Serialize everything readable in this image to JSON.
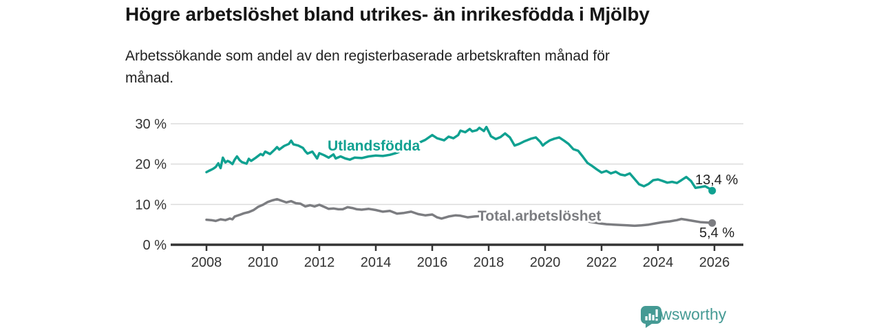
{
  "header": {
    "subtitle_lines": [
      "Arbetssökande som andel av den registerbaserade arbetskraften månad för",
      "månad."
    ]
  },
  "chart_data": {
    "type": "line",
    "title": "Högre arbetslöshet bland utrikes- än inrikesfödda i Mjölby",
    "subtitle": "Arbetssökande som andel av den registerbaserade arbetskraften månad för månad.",
    "xlabel": "",
    "ylabel": "",
    "ylim": [
      0,
      30
    ],
    "xlim": [
      2007.9,
      2026.1
    ],
    "grid": true,
    "legend_position": "inline-labels",
    "x_axis": {
      "ticks": [
        2008,
        2010,
        2012,
        2014,
        2016,
        2018,
        2020,
        2022,
        2024,
        2026
      ]
    },
    "y_axis": {
      "ticks": [
        {
          "value": 0,
          "label": "0 %"
        },
        {
          "value": 10,
          "label": "10 %"
        },
        {
          "value": 20,
          "label": "20 %"
        },
        {
          "value": 30,
          "label": "30 %"
        }
      ]
    },
    "series": [
      {
        "name": "Utlandsfödda",
        "color": "#10a191",
        "end_label": "13,4 %",
        "end_value": 13.4,
        "points": [
          [
            2008.0,
            18.0
          ],
          [
            2008.08,
            18.3
          ],
          [
            2008.17,
            18.6
          ],
          [
            2008.25,
            18.9
          ],
          [
            2008.33,
            19.3
          ],
          [
            2008.42,
            20.2
          ],
          [
            2008.5,
            19.0
          ],
          [
            2008.58,
            21.6
          ],
          [
            2008.67,
            20.4
          ],
          [
            2008.75,
            20.8
          ],
          [
            2008.83,
            20.5
          ],
          [
            2008.92,
            20.0
          ],
          [
            2009.0,
            21.1
          ],
          [
            2009.08,
            21.9
          ],
          [
            2009.17,
            21.0
          ],
          [
            2009.25,
            20.5
          ],
          [
            2009.42,
            20.1
          ],
          [
            2009.5,
            21.3
          ],
          [
            2009.58,
            20.8
          ],
          [
            2009.67,
            21.2
          ],
          [
            2009.75,
            21.6
          ],
          [
            2009.92,
            22.5
          ],
          [
            2010.0,
            22.2
          ],
          [
            2010.08,
            23.1
          ],
          [
            2010.25,
            22.5
          ],
          [
            2010.42,
            23.6
          ],
          [
            2010.5,
            24.2
          ],
          [
            2010.58,
            23.6
          ],
          [
            2010.75,
            24.5
          ],
          [
            2010.92,
            25.0
          ],
          [
            2011.0,
            25.8
          ],
          [
            2011.08,
            24.9
          ],
          [
            2011.25,
            24.6
          ],
          [
            2011.42,
            24.0
          ],
          [
            2011.5,
            23.2
          ],
          [
            2011.58,
            22.6
          ],
          [
            2011.75,
            23.1
          ],
          [
            2011.92,
            21.4
          ],
          [
            2012.0,
            22.7
          ],
          [
            2012.17,
            22.2
          ],
          [
            2012.33,
            21.6
          ],
          [
            2012.5,
            22.4
          ],
          [
            2012.58,
            21.4
          ],
          [
            2012.75,
            21.9
          ],
          [
            2012.92,
            21.4
          ],
          [
            2013.08,
            21.1
          ],
          [
            2013.25,
            21.6
          ],
          [
            2013.5,
            21.5
          ],
          [
            2013.75,
            21.9
          ],
          [
            2014.0,
            22.1
          ],
          [
            2014.25,
            22.0
          ],
          [
            2014.5,
            22.3
          ],
          [
            2014.75,
            22.8
          ],
          [
            2015.0,
            23.6
          ],
          [
            2015.25,
            24.4
          ],
          [
            2015.5,
            25.2
          ],
          [
            2015.75,
            26.0
          ],
          [
            2016.0,
            27.2
          ],
          [
            2016.17,
            26.4
          ],
          [
            2016.42,
            25.9
          ],
          [
            2016.58,
            26.8
          ],
          [
            2016.75,
            26.4
          ],
          [
            2016.92,
            27.2
          ],
          [
            2017.0,
            28.3
          ],
          [
            2017.17,
            27.9
          ],
          [
            2017.33,
            28.7
          ],
          [
            2017.42,
            28.1
          ],
          [
            2017.58,
            28.4
          ],
          [
            2017.67,
            29.0
          ],
          [
            2017.83,
            28.2
          ],
          [
            2017.92,
            29.2
          ],
          [
            2018.08,
            26.9
          ],
          [
            2018.25,
            26.2
          ],
          [
            2018.42,
            26.7
          ],
          [
            2018.58,
            27.6
          ],
          [
            2018.75,
            26.6
          ],
          [
            2018.92,
            24.6
          ],
          [
            2019.08,
            25.0
          ],
          [
            2019.25,
            25.6
          ],
          [
            2019.5,
            26.3
          ],
          [
            2019.67,
            26.6
          ],
          [
            2019.83,
            25.5
          ],
          [
            2019.92,
            24.6
          ],
          [
            2020.0,
            25.1
          ],
          [
            2020.17,
            25.9
          ],
          [
            2020.33,
            26.3
          ],
          [
            2020.5,
            26.6
          ],
          [
            2020.67,
            25.8
          ],
          [
            2020.83,
            25.0
          ],
          [
            2021.0,
            23.7
          ],
          [
            2021.17,
            23.3
          ],
          [
            2021.33,
            21.9
          ],
          [
            2021.5,
            20.3
          ],
          [
            2021.67,
            19.5
          ],
          [
            2021.83,
            18.7
          ],
          [
            2022.0,
            17.9
          ],
          [
            2022.17,
            18.3
          ],
          [
            2022.33,
            17.7
          ],
          [
            2022.5,
            18.1
          ],
          [
            2022.67,
            17.4
          ],
          [
            2022.83,
            17.2
          ],
          [
            2023.0,
            17.7
          ],
          [
            2023.17,
            16.3
          ],
          [
            2023.33,
            15.0
          ],
          [
            2023.5,
            14.5
          ],
          [
            2023.67,
            15.1
          ],
          [
            2023.83,
            16.0
          ],
          [
            2024.0,
            16.2
          ],
          [
            2024.17,
            15.8
          ],
          [
            2024.33,
            15.4
          ],
          [
            2024.5,
            15.6
          ],
          [
            2024.67,
            15.3
          ],
          [
            2024.83,
            16.0
          ],
          [
            2025.0,
            16.8
          ],
          [
            2025.17,
            15.8
          ],
          [
            2025.33,
            14.1
          ],
          [
            2025.5,
            14.3
          ],
          [
            2025.67,
            14.5
          ],
          [
            2025.83,
            13.9
          ],
          [
            2025.92,
            13.4
          ]
        ]
      },
      {
        "name": "Total arbetslöshet",
        "color": "#7c7d81",
        "end_label": "5,4 %",
        "end_value": 5.4,
        "points": [
          [
            2008.0,
            6.2
          ],
          [
            2008.17,
            6.1
          ],
          [
            2008.33,
            5.9
          ],
          [
            2008.5,
            6.3
          ],
          [
            2008.67,
            6.1
          ],
          [
            2008.83,
            6.5
          ],
          [
            2008.92,
            6.3
          ],
          [
            2009.0,
            7.0
          ],
          [
            2009.17,
            7.4
          ],
          [
            2009.33,
            7.8
          ],
          [
            2009.5,
            8.1
          ],
          [
            2009.67,
            8.6
          ],
          [
            2009.83,
            9.4
          ],
          [
            2010.0,
            9.9
          ],
          [
            2010.17,
            10.6
          ],
          [
            2010.33,
            11.0
          ],
          [
            2010.5,
            11.3
          ],
          [
            2010.67,
            10.9
          ],
          [
            2010.83,
            10.5
          ],
          [
            2011.0,
            10.8
          ],
          [
            2011.17,
            10.3
          ],
          [
            2011.33,
            10.2
          ],
          [
            2011.5,
            9.5
          ],
          [
            2011.67,
            9.8
          ],
          [
            2011.83,
            9.5
          ],
          [
            2012.0,
            9.9
          ],
          [
            2012.17,
            9.4
          ],
          [
            2012.33,
            8.9
          ],
          [
            2012.5,
            9.0
          ],
          [
            2012.67,
            8.8
          ],
          [
            2012.83,
            8.8
          ],
          [
            2013.0,
            9.3
          ],
          [
            2013.17,
            9.1
          ],
          [
            2013.33,
            8.8
          ],
          [
            2013.5,
            8.7
          ],
          [
            2013.75,
            8.9
          ],
          [
            2014.0,
            8.6
          ],
          [
            2014.25,
            8.2
          ],
          [
            2014.5,
            8.4
          ],
          [
            2014.75,
            7.7
          ],
          [
            2015.0,
            7.9
          ],
          [
            2015.25,
            8.2
          ],
          [
            2015.5,
            7.6
          ],
          [
            2015.75,
            7.3
          ],
          [
            2016.0,
            7.5
          ],
          [
            2016.17,
            6.8
          ],
          [
            2016.33,
            6.5
          ],
          [
            2016.58,
            7.0
          ],
          [
            2016.83,
            7.3
          ],
          [
            2017.0,
            7.2
          ],
          [
            2017.25,
            6.8
          ],
          [
            2017.5,
            7.0
          ],
          [
            2017.75,
            7.1
          ],
          [
            2018.0,
            6.9
          ],
          [
            2018.33,
            6.6
          ],
          [
            2018.67,
            6.4
          ],
          [
            2019.0,
            6.1
          ],
          [
            2019.5,
            5.9
          ],
          [
            2020.0,
            6.3
          ],
          [
            2020.5,
            7.0
          ],
          [
            2021.0,
            6.5
          ],
          [
            2021.5,
            5.8
          ],
          [
            2021.92,
            5.3
          ],
          [
            2022.17,
            5.1
          ],
          [
            2022.42,
            5.0
          ],
          [
            2022.67,
            4.9
          ],
          [
            2022.92,
            4.8
          ],
          [
            2023.17,
            4.7
          ],
          [
            2023.42,
            4.8
          ],
          [
            2023.67,
            5.0
          ],
          [
            2023.92,
            5.3
          ],
          [
            2024.17,
            5.6
          ],
          [
            2024.42,
            5.8
          ],
          [
            2024.67,
            6.1
          ],
          [
            2024.83,
            6.4
          ],
          [
            2025.0,
            6.2
          ],
          [
            2025.25,
            5.9
          ],
          [
            2025.5,
            5.6
          ],
          [
            2025.75,
            5.5
          ],
          [
            2025.92,
            5.4
          ]
        ]
      }
    ]
  },
  "footer": {
    "brand": "Newsworthy",
    "brand_color": "#459a94"
  }
}
